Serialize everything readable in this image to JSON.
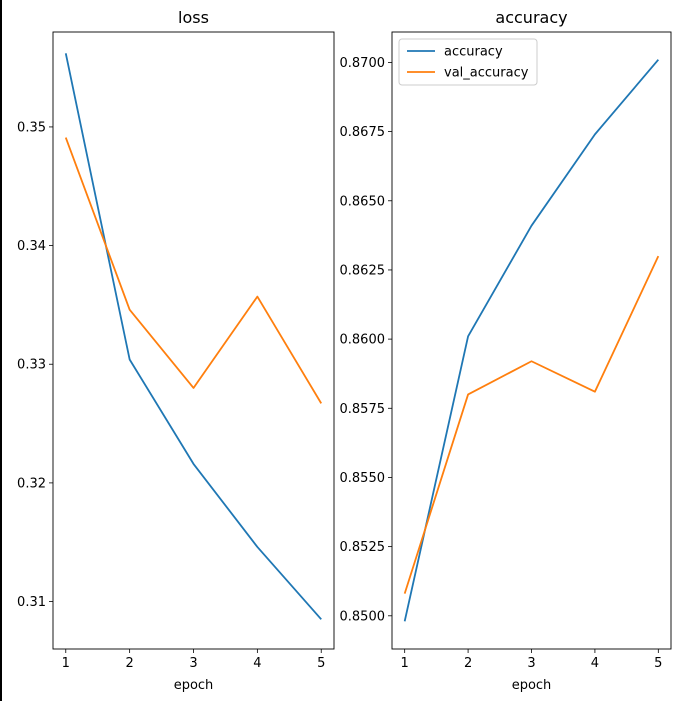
{
  "chart_data": [
    {
      "type": "line",
      "title": "loss",
      "xlabel": "epoch",
      "ylabel": "",
      "x": [
        1,
        2,
        3,
        4,
        5
      ],
      "xticks": [
        "1",
        "2",
        "3",
        "4",
        "5"
      ],
      "ylim": [
        0.306,
        0.358
      ],
      "yticks": [
        "0.31",
        "0.32",
        "0.33",
        "0.34",
        "0.35"
      ],
      "grid": false,
      "legend": null,
      "series": [
        {
          "values": [
            0.3562,
            0.3304,
            0.3216,
            0.3146,
            0.3085
          ],
          "color": "#1f77b4"
        },
        {
          "values": [
            0.3491,
            0.3346,
            0.328,
            0.3357,
            0.3267
          ],
          "color": "#ff7f0e"
        }
      ]
    },
    {
      "type": "line",
      "title": "accuracy",
      "xlabel": "epoch",
      "ylabel": "",
      "x": [
        1,
        2,
        3,
        4,
        5
      ],
      "xticks": [
        "1",
        "2",
        "3",
        "4",
        "5"
      ],
      "ylim": [
        0.8488,
        0.8711
      ],
      "yticks": [
        "0.8500",
        "0.8525",
        "0.8550",
        "0.8575",
        "0.8600",
        "0.8625",
        "0.8650",
        "0.8675",
        "0.8700"
      ],
      "grid": false,
      "legend": "top-left",
      "series": [
        {
          "name": "accuracy",
          "values": [
            0.8498,
            0.8601,
            0.8641,
            0.8674,
            0.8701
          ],
          "color": "#1f77b4"
        },
        {
          "name": "val_accuracy",
          "values": [
            0.8508,
            0.858,
            0.8592,
            0.8581,
            0.863
          ],
          "color": "#ff7f0e"
        }
      ]
    }
  ]
}
